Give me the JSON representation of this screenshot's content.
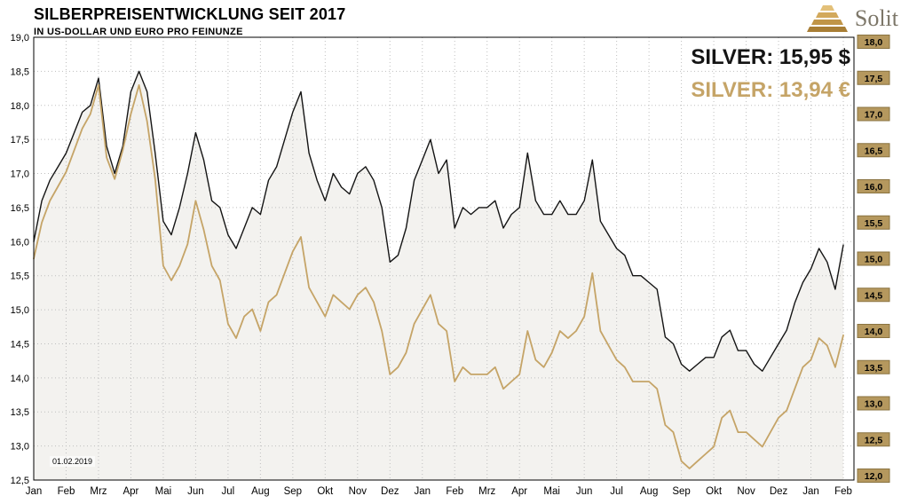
{
  "header": {
    "title": "SILBERPREISENTWICKLUNG SEIT 2017",
    "subtitle": "IN US-DOLLAR UND EURO PRO FEINUNZE",
    "logo_text": "Solit"
  },
  "annotations": {
    "usd_label": "SILVER: 15,95 $",
    "eur_label": "SILVER: 13,94 €",
    "date_label": "01.02.2019"
  },
  "colors": {
    "usd_line": "#141414",
    "eur_line": "#c5a467",
    "area_fill": "#f3f2ef",
    "grid": "#bfbfbf",
    "plot_border": "#000000",
    "right_axis_box_bg": "#b5985e",
    "right_axis_box_border": "#8a7340",
    "right_axis_box_text": "#000000"
  },
  "chart_data": {
    "type": "line",
    "title": "SILBERPREISENTWICKLUNG SEIT 2017",
    "subtitle": "IN US-DOLLAR UND EURO PRO FEINUNZE",
    "x_tick_labels": [
      "Jan",
      "Feb",
      "Mrz",
      "Apr",
      "Mai",
      "Jun",
      "Jul",
      "Aug",
      "Sep",
      "Okt",
      "Nov",
      "Dez",
      "Jan",
      "Feb",
      "Mrz",
      "Apr",
      "Mai",
      "Jun",
      "Jul",
      "Aug",
      "Sep",
      "Okt",
      "Nov",
      "Dez",
      "Jan",
      "Feb"
    ],
    "left_axis": {
      "min": 12.5,
      "max": 19.0,
      "step": 0.5,
      "ticks": [
        "19,0",
        "18,5",
        "18,0",
        "17,5",
        "17,0",
        "16,5",
        "16,0",
        "15,5",
        "15,0",
        "14,5",
        "14,0",
        "13,5",
        "13,0",
        "12,5"
      ]
    },
    "right_axis": {
      "min": 12.0,
      "max": 18.0,
      "step": 0.5,
      "ticks": [
        "18,0",
        "17,5",
        "17,0",
        "16,5",
        "16,0",
        "15,5",
        "15,0",
        "14,5",
        "14,0",
        "13,5",
        "13,0",
        "12,5",
        "12,0"
      ]
    },
    "grid": true,
    "legend_position": "none",
    "series": [
      {
        "name": "Silver USD",
        "axis": "left",
        "last_value": 15.95,
        "filled": true,
        "values": [
          16.0,
          16.6,
          16.9,
          17.1,
          17.3,
          17.6,
          17.9,
          18.0,
          18.4,
          17.4,
          17.0,
          17.4,
          18.2,
          18.5,
          18.2,
          17.3,
          16.3,
          16.1,
          16.5,
          17.0,
          17.6,
          17.2,
          16.6,
          16.5,
          16.1,
          15.9,
          16.2,
          16.5,
          16.4,
          16.9,
          17.1,
          17.5,
          17.9,
          18.2,
          17.3,
          16.9,
          16.6,
          17.0,
          16.8,
          16.7,
          17.0,
          17.1,
          16.9,
          16.5,
          15.7,
          15.8,
          16.2,
          16.9,
          17.2,
          17.5,
          17.0,
          17.2,
          16.2,
          16.5,
          16.4,
          16.5,
          16.5,
          16.6,
          16.2,
          16.4,
          16.5,
          17.3,
          16.6,
          16.4,
          16.4,
          16.6,
          16.4,
          16.4,
          16.6,
          17.2,
          16.3,
          16.1,
          15.9,
          15.8,
          15.5,
          15.5,
          15.4,
          15.3,
          14.6,
          14.5,
          14.2,
          14.1,
          14.2,
          14.3,
          14.3,
          14.6,
          14.7,
          14.4,
          14.4,
          14.2,
          14.1,
          14.3,
          14.5,
          14.7,
          15.1,
          15.4,
          15.6,
          15.9,
          15.7,
          15.3,
          15.95
        ]
      },
      {
        "name": "Silver EUR",
        "axis": "right",
        "last_value": 13.94,
        "filled": false,
        "values": [
          15.0,
          15.5,
          15.8,
          16.0,
          16.2,
          16.5,
          16.8,
          17.0,
          17.4,
          16.4,
          16.1,
          16.5,
          17.0,
          17.4,
          16.9,
          16.1,
          14.9,
          14.7,
          14.9,
          15.2,
          15.8,
          15.4,
          14.9,
          14.7,
          14.1,
          13.9,
          14.2,
          14.3,
          14.0,
          14.4,
          14.5,
          14.8,
          15.1,
          15.3,
          14.6,
          14.4,
          14.2,
          14.5,
          14.4,
          14.3,
          14.5,
          14.6,
          14.4,
          14.0,
          13.4,
          13.5,
          13.7,
          14.1,
          14.3,
          14.5,
          14.1,
          14.0,
          13.3,
          13.5,
          13.4,
          13.4,
          13.4,
          13.5,
          13.2,
          13.3,
          13.4,
          14.0,
          13.6,
          13.5,
          13.7,
          14.0,
          13.9,
          14.0,
          14.2,
          14.8,
          14.0,
          13.8,
          13.6,
          13.5,
          13.3,
          13.3,
          13.3,
          13.2,
          12.7,
          12.6,
          12.2,
          12.1,
          12.2,
          12.3,
          12.4,
          12.8,
          12.9,
          12.6,
          12.6,
          12.5,
          12.4,
          12.6,
          12.8,
          12.9,
          13.2,
          13.5,
          13.6,
          13.9,
          13.8,
          13.5,
          13.94
        ]
      }
    ]
  }
}
